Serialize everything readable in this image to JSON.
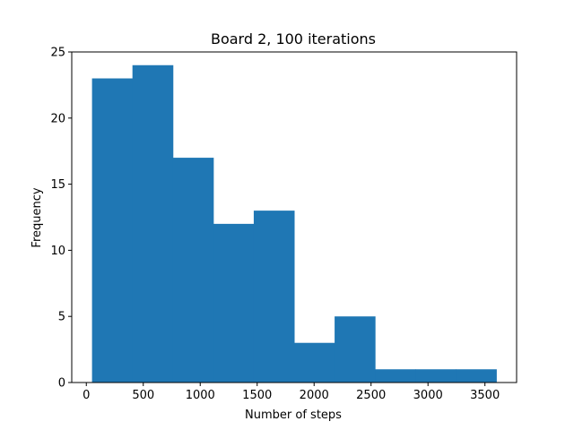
{
  "chart_data": {
    "type": "bar",
    "title": "Board 2, 100 iterations",
    "xlabel": "Number of steps",
    "ylabel": "Frequency",
    "bins": [
      {
        "start": 50,
        "end": 405,
        "count": 23
      },
      {
        "start": 405,
        "end": 760,
        "count": 24
      },
      {
        "start": 760,
        "end": 1115,
        "count": 17
      },
      {
        "start": 1115,
        "end": 1470,
        "count": 12
      },
      {
        "start": 1470,
        "end": 1825,
        "count": 13
      },
      {
        "start": 1825,
        "end": 2180,
        "count": 3
      },
      {
        "start": 2180,
        "end": 2535,
        "count": 5
      },
      {
        "start": 2535,
        "end": 2890,
        "count": 1
      },
      {
        "start": 2890,
        "end": 3245,
        "count": 1
      },
      {
        "start": 3245,
        "end": 3600,
        "count": 1
      }
    ],
    "xlim": [
      -128,
      3778
    ],
    "ylim": [
      0,
      25
    ],
    "xticks": [
      "0",
      "500",
      "1000",
      "1500",
      "2000",
      "2500",
      "3000",
      "3500"
    ],
    "yticks": [
      "0",
      "5",
      "10",
      "15",
      "20",
      "25"
    ],
    "bar_color": "#1f77b4",
    "grid": false,
    "legend": "none"
  }
}
